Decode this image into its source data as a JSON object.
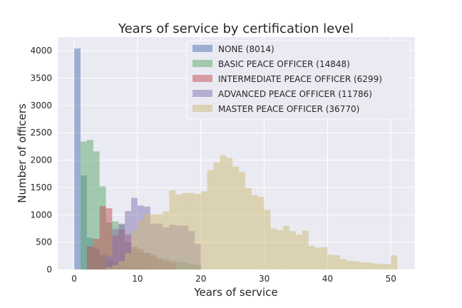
{
  "chart_data": {
    "type": "bar",
    "title": "Years of service by certification level",
    "xlabel": "Years of service",
    "ylabel": "Number of officers",
    "xlim": [
      -2.6,
      53.8
    ],
    "ylim": [
      0,
      4250
    ],
    "xticks": [
      0,
      10,
      20,
      30,
      40,
      50
    ],
    "yticks": [
      0,
      500,
      1000,
      1500,
      2000,
      2500,
      3000,
      3500,
      4000
    ],
    "grid": true,
    "legend_position": "top-right",
    "bin_width": 1,
    "series": [
      {
        "name": "NONE (8014)",
        "color": "#4c72b0",
        "x": [
          0,
          1,
          2,
          3,
          4,
          5,
          6,
          7,
          8,
          9,
          10,
          11
        ],
        "values": [
          4040,
          1720,
          580,
          380,
          270,
          180,
          120,
          80,
          60,
          40,
          30,
          20
        ]
      },
      {
        "name": "BASIC PEACE OFFICER (14848)",
        "color": "#55a868",
        "x": [
          1,
          2,
          3,
          4,
          5,
          6,
          7,
          8,
          9,
          10,
          11,
          12,
          13,
          14,
          15,
          16,
          17,
          18,
          19
        ],
        "values": [
          2340,
          2370,
          2160,
          1520,
          860,
          880,
          820,
          500,
          380,
          320,
          310,
          280,
          220,
          190,
          160,
          140,
          120,
          100,
          80
        ]
      },
      {
        "name": "INTERMEDIATE PEACE OFFICER (6299)",
        "color": "#c44e52",
        "x": [
          2,
          3,
          4,
          5,
          6,
          7,
          8,
          9,
          10,
          11,
          12,
          13,
          14,
          15
        ],
        "values": [
          420,
          560,
          1160,
          1120,
          620,
          730,
          640,
          420,
          380,
          300,
          240,
          180,
          150,
          120
        ]
      },
      {
        "name": "ADVANCED PEACE OFFICER (11786)",
        "color": "#8172b2",
        "x": [
          5,
          6,
          7,
          8,
          9,
          10,
          11,
          12,
          13,
          14,
          15,
          16,
          17,
          18,
          19
        ],
        "values": [
          250,
          740,
          840,
          1070,
          1310,
          1170,
          1150,
          840,
          840,
          770,
          820,
          800,
          800,
          700,
          470
        ]
      },
      {
        "name": "MASTER PEACE OFFICER (36770)",
        "color": "#ccb974",
        "x": [
          5,
          6,
          7,
          8,
          9,
          10,
          11,
          12,
          13,
          14,
          15,
          16,
          17,
          18,
          19,
          20,
          21,
          22,
          23,
          24,
          25,
          26,
          27,
          28,
          29,
          30,
          31,
          32,
          33,
          34,
          35,
          36,
          37,
          38,
          39,
          40,
          41,
          42,
          43,
          44,
          45,
          46,
          47,
          48,
          49,
          50
        ],
        "values": [
          40,
          80,
          150,
          300,
          720,
          900,
          1010,
          1010,
          1010,
          1060,
          1450,
          1370,
          1400,
          1400,
          1380,
          1430,
          1820,
          1960,
          2090,
          2040,
          1880,
          1780,
          1490,
          1360,
          1330,
          1090,
          750,
          720,
          800,
          700,
          640,
          710,
          430,
          400,
          410,
          270,
          260,
          190,
          160,
          150,
          130,
          130,
          110,
          100,
          100,
          260
        ]
      }
    ]
  }
}
